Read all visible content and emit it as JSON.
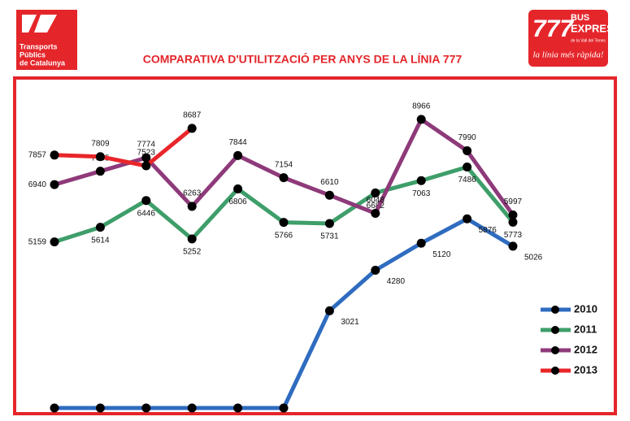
{
  "header": {
    "left_logo": [
      "Transports",
      "Públics",
      "de Catalunya"
    ],
    "right_logo": {
      "number": "777",
      "line1": "BUS",
      "line2": "EXPRES",
      "line3": "de la Vall del Tenes",
      "slogan": "la línia més ràpida!"
    }
  },
  "chart_data": {
    "type": "line",
    "title": "COMPARATIVA D'UTILITZACIÓ PER ANYS DE LA LÍNIA 777",
    "categories": [
      null,
      null,
      null,
      null,
      null,
      null,
      null,
      null,
      null,
      null,
      null
    ],
    "ylim": [
      0,
      10200
    ],
    "legend": "lower right",
    "series": [
      {
        "name": "2010",
        "color": "#2f6cc0",
        "values": [
          0,
          0,
          0,
          0,
          0,
          0,
          3021,
          4280,
          5120,
          5876,
          5026
        ],
        "value_labels": [
          null,
          null,
          null,
          null,
          null,
          null,
          "3021",
          "4280",
          "5120",
          "5876",
          "5026"
        ]
      },
      {
        "name": "2011",
        "color": "#3e9e6a",
        "values": [
          5159,
          5614,
          6446,
          5252,
          6806,
          5766,
          5731,
          6682,
          7063,
          7486,
          5773
        ]
      },
      {
        "name": "2012",
        "color": "#8e3a7a",
        "values": [
          6940,
          7355,
          7774,
          6263,
          7844,
          7154,
          6610,
          6048,
          8966,
          7990,
          5997
        ]
      },
      {
        "name": "2013",
        "color": "#e8262a",
        "values": [
          7857,
          7809,
          7523,
          8687,
          null,
          null,
          null,
          null,
          null,
          null,
          null
        ]
      }
    ]
  }
}
